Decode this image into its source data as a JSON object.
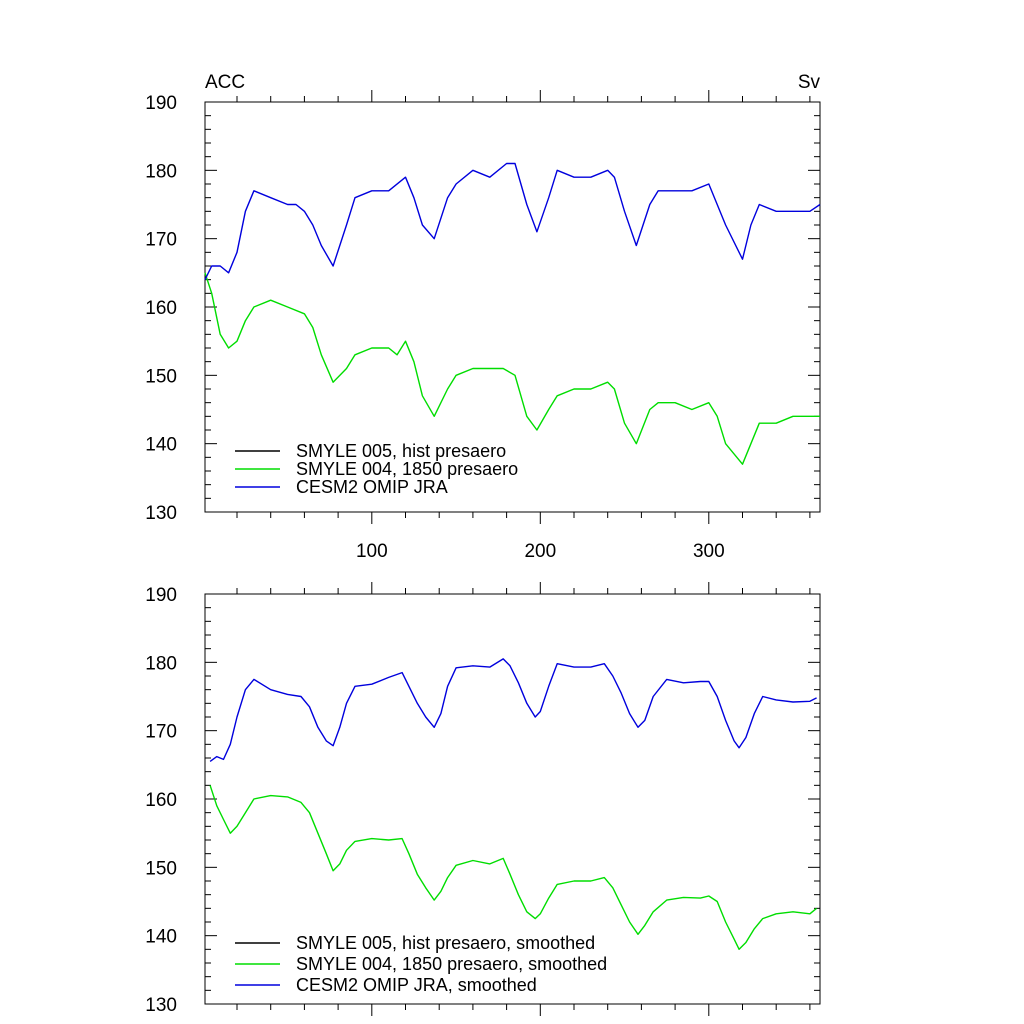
{
  "chart_data": [
    {
      "type": "line",
      "title_left": "ACC",
      "title_right": "Sv",
      "xlabel": "",
      "ylabel": "",
      "xlim": [
        1,
        366
      ],
      "ylim": [
        130,
        190
      ],
      "xticks": [
        100,
        200,
        300
      ],
      "xtick_labels": [
        "100",
        "200",
        "300"
      ],
      "yticks": [
        130,
        140,
        150,
        160,
        170,
        180,
        190
      ],
      "ytick_labels": [
        "130",
        "140",
        "150",
        "160",
        "170",
        "180",
        "190"
      ],
      "grid": false,
      "legend_placement": "bottom-left",
      "series": [
        {
          "name": "SMYLE 005, hist presaero",
          "color": "#000000",
          "x": [],
          "values": []
        },
        {
          "name": "SMYLE 004, 1850 presaero",
          "color": "#00dd00",
          "x": [
            1,
            5,
            10,
            15,
            20,
            25,
            30,
            40,
            50,
            60,
            65,
            70,
            77,
            85,
            90,
            100,
            110,
            115,
            120,
            125,
            130,
            137,
            145,
            150,
            160,
            170,
            178,
            185,
            192,
            198,
            205,
            210,
            220,
            230,
            240,
            244,
            250,
            257,
            265,
            270,
            280,
            290,
            300,
            305,
            310,
            320,
            325,
            330,
            340,
            350,
            360,
            366
          ],
          "values": [
            165,
            162,
            156,
            154,
            155,
            158,
            160,
            161,
            160,
            159,
            157,
            153,
            149,
            151,
            153,
            154,
            154,
            153,
            155,
            152,
            147,
            144,
            148,
            150,
            151,
            151,
            151,
            150,
            144,
            142,
            145,
            147,
            148,
            148,
            149,
            148,
            143,
            140,
            145,
            146,
            146,
            145,
            146,
            144,
            140,
            137,
            140,
            143,
            143,
            144,
            144,
            144
          ]
        },
        {
          "name": "CESM2 OMIP JRA",
          "color": "#0000dd",
          "x": [
            1,
            5,
            10,
            15,
            20,
            25,
            30,
            40,
            50,
            55,
            60,
            65,
            70,
            77,
            85,
            90,
            100,
            110,
            120,
            125,
            130,
            137,
            145,
            150,
            160,
            170,
            180,
            185,
            192,
            198,
            205,
            210,
            220,
            230,
            240,
            244,
            250,
            257,
            265,
            270,
            280,
            290,
            300,
            305,
            310,
            320,
            325,
            330,
            340,
            350,
            360,
            366
          ],
          "values": [
            164,
            166,
            166,
            165,
            168,
            174,
            177,
            176,
            175,
            175,
            174,
            172,
            169,
            166,
            172,
            176,
            177,
            177,
            179,
            176,
            172,
            170,
            176,
            178,
            180,
            179,
            181,
            181,
            175,
            171,
            176,
            180,
            179,
            179,
            180,
            179,
            174,
            169,
            175,
            177,
            177,
            177,
            178,
            175,
            172,
            167,
            172,
            175,
            174,
            174,
            174,
            175
          ]
        }
      ]
    },
    {
      "type": "line",
      "xlabel": "",
      "ylabel": "",
      "xlim": [
        1,
        366
      ],
      "ylim": [
        130,
        190
      ],
      "xticks": [
        100,
        200,
        300
      ],
      "xtick_labels": [],
      "yticks": [
        130,
        140,
        150,
        160,
        170,
        180,
        190
      ],
      "ytick_labels": [
        "130",
        "140",
        "150",
        "160",
        "170",
        "180",
        "190"
      ],
      "grid": false,
      "legend_placement": "bottom-left",
      "series": [
        {
          "name": "SMYLE 005, hist presaero, smoothed",
          "color": "#000000",
          "x": [],
          "values": []
        },
        {
          "name": "SMYLE 004, 1850 presaero, smoothed",
          "color": "#00dd00",
          "x": [
            4,
            8,
            12,
            16,
            20,
            25,
            30,
            40,
            50,
            58,
            63,
            68,
            73,
            77,
            81,
            85,
            90,
            100,
            110,
            118,
            122,
            127,
            132,
            137,
            141,
            145,
            150,
            160,
            170,
            178,
            182,
            187,
            192,
            197,
            200,
            205,
            210,
            220,
            230,
            238,
            243,
            248,
            253,
            258,
            262,
            267,
            275,
            285,
            295,
            300,
            305,
            310,
            315,
            318,
            322,
            327,
            332,
            340,
            350,
            360,
            364
          ],
          "values": [
            162,
            159,
            157,
            155,
            156,
            158,
            160,
            160.5,
            160.3,
            159.5,
            158,
            155,
            152,
            149.5,
            150.5,
            152.5,
            153.8,
            154.2,
            154,
            154.2,
            152,
            149,
            147,
            145.2,
            146.5,
            148.5,
            150.3,
            151,
            150.5,
            151.3,
            149,
            146,
            143.5,
            142.5,
            143.2,
            145.5,
            147.5,
            148,
            148,
            148.5,
            147,
            144.5,
            142,
            140.2,
            141.5,
            143.5,
            145.2,
            145.6,
            145.5,
            145.8,
            145,
            142,
            139.5,
            138,
            139,
            141,
            142.5,
            143.2,
            143.5,
            143.2,
            144
          ]
        },
        {
          "name": "CESM2 OMIP JRA, smoothed",
          "color": "#0000dd",
          "x": [
            4,
            8,
            12,
            16,
            20,
            25,
            30,
            40,
            50,
            58,
            63,
            68,
            73,
            77,
            81,
            85,
            90,
            100,
            110,
            118,
            122,
            127,
            132,
            137,
            141,
            145,
            150,
            160,
            170,
            178,
            182,
            187,
            192,
            197,
            200,
            205,
            210,
            220,
            230,
            238,
            243,
            248,
            253,
            258,
            262,
            267,
            275,
            285,
            295,
            300,
            305,
            310,
            315,
            318,
            322,
            327,
            332,
            340,
            350,
            360,
            364
          ],
          "values": [
            165.5,
            166.2,
            165.8,
            168,
            172,
            176,
            177.5,
            176,
            175.3,
            175,
            173.5,
            170.5,
            168.5,
            167.8,
            170.5,
            174,
            176.5,
            176.8,
            177.8,
            178.5,
            176.5,
            174,
            172,
            170.5,
            172.5,
            176.5,
            179.2,
            179.5,
            179.3,
            180.5,
            179.5,
            177,
            174,
            172,
            172.8,
            176.5,
            179.8,
            179.3,
            179.3,
            179.8,
            178,
            175.5,
            172.5,
            170.5,
            171.5,
            175,
            177.5,
            177,
            177.2,
            177.2,
            175,
            171.5,
            168.5,
            167.5,
            169,
            172.5,
            175,
            174.5,
            174.2,
            174.3,
            174.8
          ]
        }
      ]
    }
  ]
}
